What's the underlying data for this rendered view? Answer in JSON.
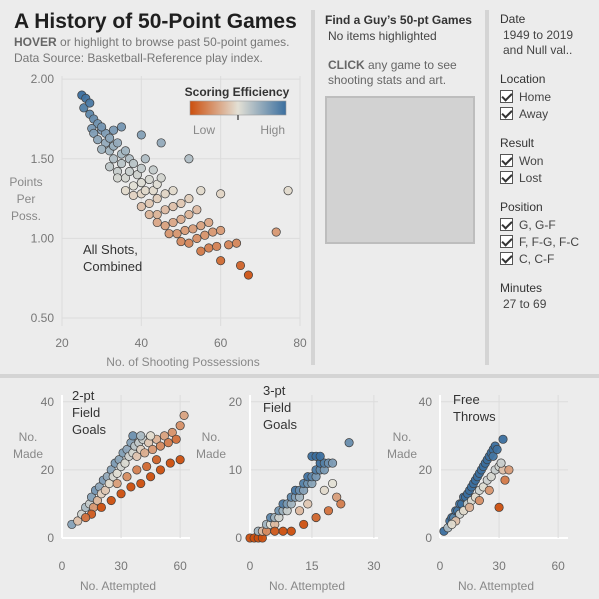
{
  "header": {
    "title": "A History of 50-Point Games",
    "subtitle_hover_strong": "HOVER",
    "subtitle_hover_rest": " or highlight to browse past 50-point games.",
    "subtitle_source": "Data Source: Basketball-Reference play index."
  },
  "detail_panel": {
    "title": "Find a Guy’s 50-pt Games",
    "status": "No items highlighted",
    "click_strong": "CLICK",
    "click_rest_1": " any game to see",
    "click_rest_2": "shooting stats and art."
  },
  "filters": {
    "date": {
      "label": "Date",
      "value_1": "1949 to 2019",
      "value_2": "and Null val.."
    },
    "location": {
      "label": "Location",
      "options": [
        "Home",
        "Away"
      ]
    },
    "result": {
      "label": "Result",
      "options": [
        "Won",
        "Lost"
      ]
    },
    "position": {
      "label": "Position",
      "options": [
        "G, G-F",
        "F, F-G, F-C",
        "C, C-F"
      ]
    },
    "minutes": {
      "label": "Minutes",
      "value": "27 to 69"
    }
  },
  "colors": {
    "low": "#cc4f0e",
    "mid": "#e3e0d5",
    "high": "#3b6f9f",
    "background": "#ececec"
  },
  "chart_data": [
    {
      "type": "scatter",
      "title": "",
      "annotation": [
        "All Shots,",
        "Combined"
      ],
      "xlabel": "No. of Shooting Possessions",
      "ylabel": [
        "Points",
        "Per",
        "Poss."
      ],
      "xlim": [
        20,
        80
      ],
      "ylim": [
        0.45,
        2.02
      ],
      "xticks": [
        "20",
        "40",
        "60",
        "80"
      ],
      "yticks": [
        "0.50",
        "1.00",
        "1.50",
        "2.00"
      ],
      "legend": {
        "title": "Scoring Efficiency",
        "low_label": "Low",
        "high_label": "High",
        "position": "top-right"
      },
      "grid": true,
      "points": [
        [
          25,
          1.9
        ],
        [
          26,
          1.88
        ],
        [
          25.5,
          1.82
        ],
        [
          27,
          1.85
        ],
        [
          27,
          1.78
        ],
        [
          28,
          1.75
        ],
        [
          29,
          1.72
        ],
        [
          27.5,
          1.69
        ],
        [
          28,
          1.66
        ],
        [
          30,
          1.68
        ],
        [
          29,
          1.62
        ],
        [
          31,
          1.66
        ],
        [
          31,
          1.6
        ],
        [
          32,
          1.63
        ],
        [
          30,
          1.56
        ],
        [
          32,
          1.55
        ],
        [
          33,
          1.58
        ],
        [
          34,
          1.6
        ],
        [
          33,
          1.5
        ],
        [
          35,
          1.53
        ],
        [
          36,
          1.55
        ],
        [
          32,
          1.45
        ],
        [
          34,
          1.42
        ],
        [
          35,
          1.47
        ],
        [
          37,
          1.5
        ],
        [
          38,
          1.47
        ],
        [
          34,
          1.38
        ],
        [
          36,
          1.38
        ],
        [
          37,
          1.42
        ],
        [
          39,
          1.4
        ],
        [
          40,
          1.44
        ],
        [
          41,
          1.5
        ],
        [
          36,
          1.3
        ],
        [
          38,
          1.33
        ],
        [
          40,
          1.35
        ],
        [
          42,
          1.37
        ],
        [
          43,
          1.43
        ],
        [
          38,
          1.27
        ],
        [
          40,
          1.28
        ],
        [
          41,
          1.3
        ],
        [
          43,
          1.3
        ],
        [
          44,
          1.34
        ],
        [
          45,
          1.38
        ],
        [
          40,
          1.2
        ],
        [
          42,
          1.22
        ],
        [
          44,
          1.25
        ],
        [
          46,
          1.28
        ],
        [
          48,
          1.3
        ],
        [
          42,
          1.15
        ],
        [
          44,
          1.15
        ],
        [
          46,
          1.18
        ],
        [
          48,
          1.2
        ],
        [
          50,
          1.22
        ],
        [
          52,
          1.25
        ],
        [
          44,
          1.1
        ],
        [
          46,
          1.08
        ],
        [
          48,
          1.1
        ],
        [
          50,
          1.12
        ],
        [
          52,
          1.15
        ],
        [
          54,
          1.18
        ],
        [
          47,
          1.03
        ],
        [
          49,
          1.03
        ],
        [
          51,
          1.05
        ],
        [
          53,
          1.06
        ],
        [
          55,
          1.08
        ],
        [
          57,
          1.1
        ],
        [
          50,
          0.98
        ],
        [
          52,
          0.97
        ],
        [
          54,
          1.0
        ],
        [
          56,
          1.02
        ],
        [
          58,
          1.04
        ],
        [
          60,
          1.05
        ],
        [
          55,
          0.92
        ],
        [
          57,
          0.94
        ],
        [
          59,
          0.95
        ],
        [
          62,
          0.96
        ],
        [
          64,
          0.97
        ],
        [
          60,
          0.86
        ],
        [
          65,
          0.83
        ],
        [
          67,
          0.77
        ],
        [
          74,
          1.04
        ],
        [
          77,
          1.3
        ],
        [
          55,
          1.3
        ],
        [
          60,
          1.28
        ],
        [
          45,
          1.6
        ],
        [
          40,
          1.65
        ],
        [
          35,
          1.7
        ],
        [
          52,
          1.5
        ],
        [
          30,
          1.7
        ],
        [
          33,
          1.68
        ]
      ]
    },
    {
      "type": "scatter",
      "title": "",
      "annotation": [
        "2-pt",
        "Field",
        "Goals"
      ],
      "xlabel": "No. Attempted",
      "ylabel": [
        "No.",
        "Made"
      ],
      "xlim": [
        0,
        65
      ],
      "ylim": [
        0,
        42
      ],
      "xticks": [
        "0",
        "30",
        "60"
      ],
      "yticks": [
        "0",
        "20",
        "40"
      ],
      "points": [
        [
          5,
          4
        ],
        [
          8,
          5
        ],
        [
          10,
          7
        ],
        [
          12,
          9
        ],
        [
          14,
          10
        ],
        [
          15,
          12
        ],
        [
          16,
          9
        ],
        [
          18,
          11
        ],
        [
          17,
          14
        ],
        [
          19,
          15
        ],
        [
          20,
          13
        ],
        [
          21,
          17
        ],
        [
          22,
          14
        ],
        [
          23,
          18
        ],
        [
          24,
          16
        ],
        [
          25,
          20
        ],
        [
          26,
          18
        ],
        [
          27,
          22
        ],
        [
          28,
          19
        ],
        [
          29,
          23
        ],
        [
          30,
          21
        ],
        [
          31,
          25
        ],
        [
          32,
          22
        ],
        [
          33,
          26
        ],
        [
          34,
          24
        ],
        [
          35,
          28
        ],
        [
          36,
          25
        ],
        [
          37,
          27
        ],
        [
          38,
          24
        ],
        [
          39,
          28
        ],
        [
          40,
          26
        ],
        [
          41,
          29
        ],
        [
          42,
          25
        ],
        [
          44,
          28
        ],
        [
          46,
          26
        ],
        [
          48,
          29
        ],
        [
          50,
          27
        ],
        [
          52,
          30
        ],
        [
          54,
          28
        ],
        [
          56,
          31
        ],
        [
          58,
          29
        ],
        [
          60,
          33
        ],
        [
          62,
          36
        ],
        [
          60,
          23
        ],
        [
          55,
          22
        ],
        [
          50,
          20
        ],
        [
          45,
          18
        ],
        [
          40,
          16
        ],
        [
          35,
          15
        ],
        [
          30,
          13
        ],
        [
          25,
          11
        ],
        [
          20,
          9
        ],
        [
          15,
          7
        ],
        [
          12,
          6
        ],
        [
          38,
          20
        ],
        [
          43,
          21
        ],
        [
          48,
          23
        ],
        [
          28,
          16
        ],
        [
          33,
          18
        ],
        [
          36,
          30
        ],
        [
          40,
          30
        ],
        [
          45,
          30
        ]
      ]
    },
    {
      "type": "scatter",
      "title": "",
      "annotation": [
        "3-pt",
        "Field",
        "Goals"
      ],
      "xlabel": "No. Attempted",
      "ylabel": [
        "No.",
        "Made"
      ],
      "xlim": [
        0,
        31
      ],
      "ylim": [
        0,
        21
      ],
      "xticks": [
        "0",
        "15",
        "30"
      ],
      "yticks": [
        "0",
        "10",
        "20"
      ],
      "points": [
        [
          0,
          0
        ],
        [
          1,
          0
        ],
        [
          2,
          0
        ],
        [
          3,
          0
        ],
        [
          2,
          1
        ],
        [
          3,
          1
        ],
        [
          4,
          1
        ],
        [
          4,
          2
        ],
        [
          5,
          2
        ],
        [
          6,
          2
        ],
        [
          5,
          3
        ],
        [
          6,
          3
        ],
        [
          7,
          3
        ],
        [
          7,
          4
        ],
        [
          8,
          4
        ],
        [
          9,
          4
        ],
        [
          8,
          5
        ],
        [
          9,
          5
        ],
        [
          10,
          5
        ],
        [
          10,
          6
        ],
        [
          11,
          6
        ],
        [
          12,
          6
        ],
        [
          11,
          7
        ],
        [
          12,
          7
        ],
        [
          13,
          7
        ],
        [
          13,
          8
        ],
        [
          14,
          8
        ],
        [
          15,
          8
        ],
        [
          14,
          9
        ],
        [
          15,
          9
        ],
        [
          16,
          9
        ],
        [
          16,
          10
        ],
        [
          17,
          10
        ],
        [
          18,
          10
        ],
        [
          17,
          11
        ],
        [
          18,
          11
        ],
        [
          19,
          11
        ],
        [
          20,
          11
        ],
        [
          15,
          12
        ],
        [
          16,
          12
        ],
        [
          17,
          12
        ],
        [
          24,
          14
        ],
        [
          21,
          6
        ],
        [
          22,
          5
        ],
        [
          19,
          4
        ],
        [
          16,
          3
        ],
        [
          13,
          2
        ],
        [
          10,
          1
        ],
        [
          8,
          1
        ],
        [
          6,
          1
        ],
        [
          12,
          4
        ],
        [
          14,
          5
        ],
        [
          18,
          7
        ],
        [
          20,
          8
        ]
      ]
    },
    {
      "type": "scatter",
      "title": "",
      "annotation": [
        "Free",
        "Throws"
      ],
      "xlabel": "No. Attempted",
      "ylabel": [
        "No.",
        "Made"
      ],
      "xlim": [
        0,
        65
      ],
      "ylim": [
        0,
        42
      ],
      "xticks": [
        "0",
        "30",
        "60"
      ],
      "yticks": [
        "0",
        "20",
        "40"
      ],
      "points": [
        [
          2,
          2
        ],
        [
          4,
          3
        ],
        [
          5,
          5
        ],
        [
          6,
          6
        ],
        [
          7,
          6
        ],
        [
          8,
          8
        ],
        [
          9,
          8
        ],
        [
          10,
          10
        ],
        [
          11,
          10
        ],
        [
          12,
          12
        ],
        [
          13,
          12
        ],
        [
          14,
          13
        ],
        [
          15,
          14
        ],
        [
          16,
          15
        ],
        [
          17,
          16
        ],
        [
          18,
          17
        ],
        [
          19,
          18
        ],
        [
          20,
          19
        ],
        [
          21,
          20
        ],
        [
          22,
          21
        ],
        [
          23,
          22
        ],
        [
          24,
          23
        ],
        [
          25,
          24
        ],
        [
          26,
          25
        ],
        [
          27,
          26
        ],
        [
          28,
          27
        ],
        [
          32,
          29
        ],
        [
          10,
          7
        ],
        [
          12,
          8
        ],
        [
          14,
          10
        ],
        [
          16,
          11
        ],
        [
          18,
          12
        ],
        [
          20,
          14
        ],
        [
          22,
          15
        ],
        [
          24,
          17
        ],
        [
          26,
          18
        ],
        [
          28,
          20
        ],
        [
          30,
          21
        ],
        [
          32,
          20
        ],
        [
          35,
          20
        ],
        [
          33,
          17
        ],
        [
          30,
          9
        ],
        [
          25,
          14
        ],
        [
          20,
          11
        ],
        [
          15,
          9
        ],
        [
          8,
          5
        ],
        [
          6,
          4
        ],
        [
          27,
          24
        ],
        [
          29,
          26
        ],
        [
          31,
          22
        ]
      ]
    }
  ]
}
